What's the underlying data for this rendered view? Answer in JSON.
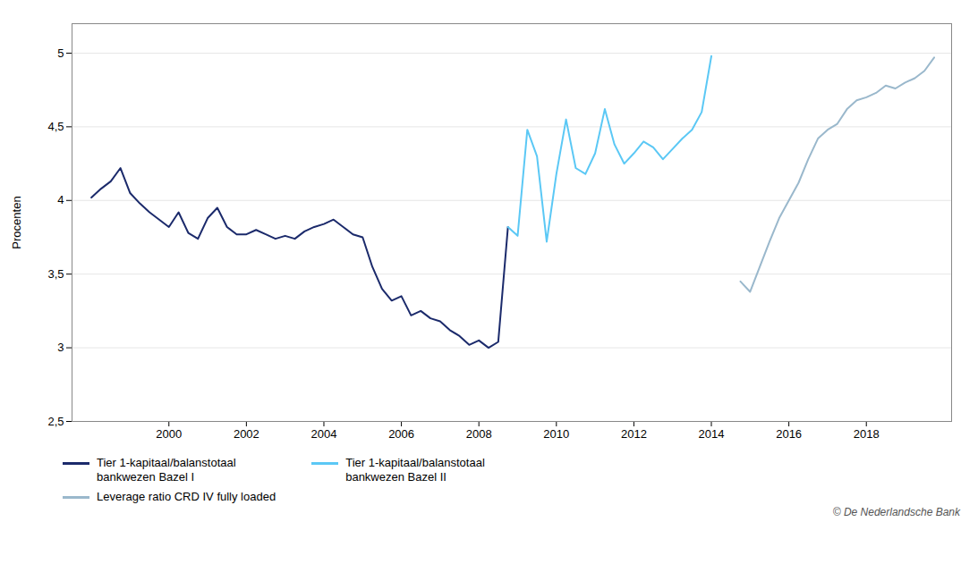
{
  "chart_data": {
    "type": "line",
    "ylabel": "Procenten",
    "ylim": [
      2.5,
      5.2
    ],
    "yticks": [
      {
        "value": 2.5,
        "label": "2,5"
      },
      3,
      {
        "value": 3.5,
        "label": "3,5"
      },
      4,
      {
        "value": 4.5,
        "label": "4,5"
      },
      5
    ],
    "xlim": [
      1997.5,
      2020.2
    ],
    "xticks": [
      2000,
      2002,
      2004,
      2006,
      2008,
      2010,
      2012,
      2014,
      2016,
      2018
    ],
    "grid": "y",
    "caption": "© De Nederlandsche Bank",
    "series": [
      {
        "name": "Tier 1-kapitaal/balanstotaal\nbankwezen Bazel I",
        "color": "#1b2a6b",
        "x": [
          1998.0,
          1998.25,
          1998.5,
          1998.75,
          1999.0,
          1999.25,
          1999.5,
          1999.75,
          2000.0,
          2000.25,
          2000.5,
          2000.75,
          2001.0,
          2001.25,
          2001.5,
          2001.75,
          2002.0,
          2002.25,
          2002.5,
          2002.75,
          2003.0,
          2003.25,
          2003.5,
          2003.75,
          2004.0,
          2004.25,
          2004.5,
          2004.75,
          2005.0,
          2005.25,
          2005.5,
          2005.75,
          2006.0,
          2006.25,
          2006.5,
          2006.75,
          2007.0,
          2007.25,
          2007.5,
          2007.75,
          2008.0,
          2008.25,
          2008.5,
          2008.75
        ],
        "values": [
          4.02,
          4.08,
          4.13,
          4.22,
          4.05,
          3.98,
          3.92,
          3.87,
          3.82,
          3.92,
          3.78,
          3.74,
          3.88,
          3.95,
          3.82,
          3.77,
          3.77,
          3.8,
          3.77,
          3.74,
          3.76,
          3.74,
          3.79,
          3.82,
          3.84,
          3.87,
          3.82,
          3.77,
          3.75,
          3.55,
          3.4,
          3.32,
          3.35,
          3.22,
          3.25,
          3.2,
          3.18,
          3.12,
          3.08,
          3.02,
          3.05,
          3.0,
          3.04,
          3.82
        ]
      },
      {
        "name": "Tier 1-kapitaal/balanstotaal\nbankwezen Bazel II",
        "color": "#5bc8f5",
        "x": [
          2008.75,
          2009.0,
          2009.25,
          2009.5,
          2009.75,
          2010.0,
          2010.25,
          2010.5,
          2010.75,
          2011.0,
          2011.25,
          2011.5,
          2011.75,
          2012.0,
          2012.25,
          2012.5,
          2012.75,
          2013.0,
          2013.25,
          2013.5,
          2013.75,
          2014.0
        ],
        "values": [
          3.82,
          3.76,
          4.48,
          4.3,
          3.72,
          4.18,
          4.55,
          4.22,
          4.18,
          4.32,
          4.62,
          4.38,
          4.25,
          4.32,
          4.4,
          4.36,
          4.28,
          4.35,
          4.42,
          4.48,
          4.6,
          4.98
        ]
      },
      {
        "name": "Leverage ratio CRD IV fully loaded",
        "color": "#9ab8cc",
        "x": [
          2014.75,
          2015.0,
          2015.25,
          2015.5,
          2015.75,
          2016.0,
          2016.25,
          2016.5,
          2016.75,
          2017.0,
          2017.25,
          2017.5,
          2017.75,
          2018.0,
          2018.25,
          2018.5,
          2018.75,
          2019.0,
          2019.25,
          2019.5,
          2019.75
        ],
        "values": [
          3.45,
          3.38,
          3.55,
          3.72,
          3.88,
          4.0,
          4.12,
          4.28,
          4.42,
          4.48,
          4.52,
          4.62,
          4.68,
          4.7,
          4.73,
          4.78,
          4.76,
          4.8,
          4.83,
          4.88,
          4.97
        ]
      }
    ]
  }
}
